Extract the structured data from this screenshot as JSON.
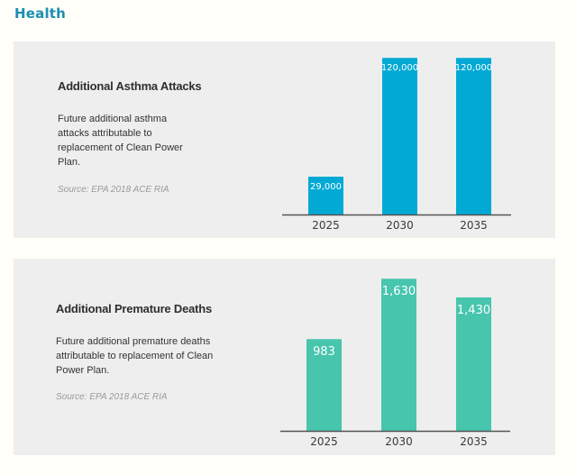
{
  "section_title": "Health",
  "colors": {
    "section_title": "#1b8fb1",
    "chart1_bar": "#02a9d5",
    "chart2_bar": "#47c5ad",
    "axis": "#555555"
  },
  "chart_data": [
    {
      "type": "bar",
      "title": "Additional Asthma Attacks",
      "description": "Future additional asthma attacks attributable to replacement of Clean Power Plan.",
      "source": "Source: EPA 2018 ACE RIA",
      "categories": [
        "2025",
        "2030",
        "2035"
      ],
      "values": [
        29000,
        120000,
        120000
      ],
      "data_labels": [
        "29,000",
        "120,000",
        "120,000"
      ],
      "xlabel": "",
      "ylabel": "",
      "ylim": [
        0,
        125000
      ],
      "grid": false
    },
    {
      "type": "bar",
      "title": "Additional Premature Deaths",
      "description": "Future additional premature deaths attributable to replacement of Clean Power Plan.",
      "source": "Source: EPA 2018 ACE RIA",
      "categories": [
        "2025",
        "2030",
        "2035"
      ],
      "values": [
        983,
        1630,
        1430
      ],
      "data_labels": [
        "983",
        "1,630",
        "1,430"
      ],
      "xlabel": "",
      "ylabel": "",
      "ylim": [
        0,
        1700
      ],
      "grid": false
    }
  ]
}
